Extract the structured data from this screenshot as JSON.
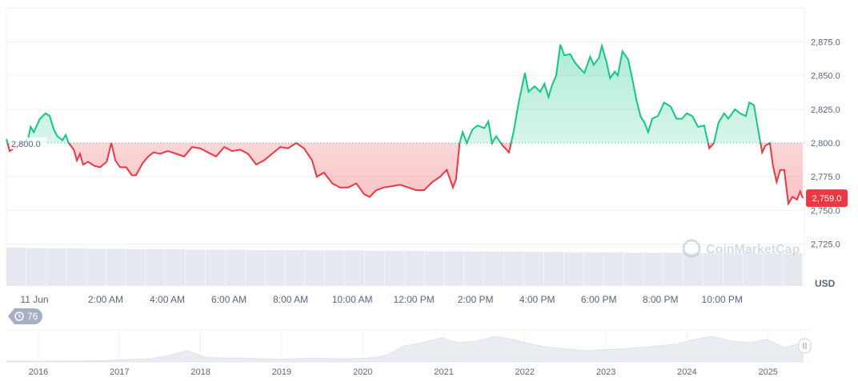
{
  "chart_data": {
    "type": "line",
    "currency_label": "USD",
    "baseline": 2800,
    "baseline_label": "2,800.0",
    "current_price_label": "2,759.0",
    "ylim": [
      2710,
      2900
    ],
    "y_ticks": [
      "2,725.0",
      "2,750.0",
      "2,775.0",
      "2,800.0",
      "2,825.0",
      "2,850.0",
      "2,875.0"
    ],
    "y_tick_values": [
      2725,
      2750,
      2775,
      2800,
      2825,
      2850,
      2875
    ],
    "x_ticks": [
      {
        "label": "11 Jun",
        "t": "2025-06-11T00:00"
      },
      {
        "label": "2:00 AM",
        "t": "2025-06-11T02:00"
      },
      {
        "label": "4:00 AM",
        "t": "2025-06-11T04:00"
      },
      {
        "label": "6:00 AM",
        "t": "2025-06-11T06:00"
      },
      {
        "label": "8:00 AM",
        "t": "2025-06-11T08:00"
      },
      {
        "label": "10:00 AM",
        "t": "2025-06-11T10:00"
      },
      {
        "label": "12:00 PM",
        "t": "2025-06-11T12:00"
      },
      {
        "label": "2:00 PM",
        "t": "2025-06-11T14:00"
      },
      {
        "label": "4:00 PM",
        "t": "2025-06-11T16:00"
      },
      {
        "label": "6:00 PM",
        "t": "2025-06-11T18:00"
      },
      {
        "label": "8:00 PM",
        "t": "2025-06-11T20:00"
      },
      {
        "label": "10:00 PM",
        "t": "2025-06-11T22:00"
      }
    ],
    "colors": {
      "up": "#16c784",
      "down": "#ea3943",
      "grid": "#eff2f5",
      "volume": "#e6eaf0",
      "label": "#58667e"
    },
    "series": [
      [
        "2025-06-10T22:47",
        2803
      ],
      [
        "2025-06-10T22:53",
        2794
      ],
      [
        "2025-06-10T23:29",
        2803
      ],
      [
        "2025-06-10T23:34",
        2812
      ],
      [
        "2025-06-10T23:40",
        2808
      ],
      [
        "2025-06-10T23:52",
        2818
      ],
      [
        "2025-06-11T00:03",
        2822
      ],
      [
        "2025-06-11T00:11",
        2820
      ],
      [
        "2025-06-11T00:19",
        2810
      ],
      [
        "2025-06-11T00:26",
        2805
      ],
      [
        "2025-06-11T00:36",
        2802
      ],
      [
        "2025-06-11T00:42",
        2806
      ],
      [
        "2025-06-11T00:48",
        2800
      ],
      [
        "2025-06-11T00:58",
        2795
      ],
      [
        "2025-06-11T01:04",
        2787
      ],
      [
        "2025-06-11T01:10",
        2792
      ],
      [
        "2025-06-11T01:16",
        2784
      ],
      [
        "2025-06-11T01:26",
        2786
      ],
      [
        "2025-06-11T01:38",
        2783
      ],
      [
        "2025-06-11T01:49",
        2782
      ],
      [
        "2025-06-11T02:02",
        2786
      ],
      [
        "2025-06-11T02:11",
        2800
      ],
      [
        "2025-06-11T02:19",
        2787
      ],
      [
        "2025-06-11T02:28",
        2782
      ],
      [
        "2025-06-11T02:40",
        2782
      ],
      [
        "2025-06-11T02:51",
        2776
      ],
      [
        "2025-06-11T02:59",
        2776
      ],
      [
        "2025-06-11T03:12",
        2785
      ],
      [
        "2025-06-11T03:23",
        2790
      ],
      [
        "2025-06-11T03:33",
        2793
      ],
      [
        "2025-06-11T03:46",
        2792
      ],
      [
        "2025-06-11T04:01",
        2794
      ],
      [
        "2025-06-11T04:17",
        2792
      ],
      [
        "2025-06-11T04:33",
        2790
      ],
      [
        "2025-06-11T04:48",
        2797
      ],
      [
        "2025-06-11T05:04",
        2796
      ],
      [
        "2025-06-11T05:19",
        2793
      ],
      [
        "2025-06-11T05:35",
        2790
      ],
      [
        "2025-06-11T05:51",
        2797
      ],
      [
        "2025-06-11T06:06",
        2794
      ],
      [
        "2025-06-11T06:22",
        2795
      ],
      [
        "2025-06-11T06:37",
        2792
      ],
      [
        "2025-06-11T06:53",
        2784
      ],
      [
        "2025-06-11T07:08",
        2787
      ],
      [
        "2025-06-11T07:24",
        2792
      ],
      [
        "2025-06-11T07:40",
        2797
      ],
      [
        "2025-06-11T07:55",
        2796
      ],
      [
        "2025-06-11T08:11",
        2800
      ],
      [
        "2025-06-11T08:26",
        2796
      ],
      [
        "2025-06-11T08:42",
        2787
      ],
      [
        "2025-06-11T08:51",
        2775
      ],
      [
        "2025-06-11T09:05",
        2778
      ],
      [
        "2025-06-11T09:21",
        2770
      ],
      [
        "2025-06-11T09:36",
        2767
      ],
      [
        "2025-06-11T09:52",
        2767
      ],
      [
        "2025-06-11T10:08",
        2770
      ],
      [
        "2025-06-11T10:23",
        2762
      ],
      [
        "2025-06-11T10:34",
        2760
      ],
      [
        "2025-06-11T10:47",
        2765
      ],
      [
        "2025-06-11T11:02",
        2767
      ],
      [
        "2025-06-11T11:18",
        2768
      ],
      [
        "2025-06-11T11:33",
        2769
      ],
      [
        "2025-06-11T11:49",
        2767
      ],
      [
        "2025-06-11T12:04",
        2765
      ],
      [
        "2025-06-11T12:20",
        2765
      ],
      [
        "2025-06-11T12:36",
        2771
      ],
      [
        "2025-06-11T12:51",
        2775
      ],
      [
        "2025-06-11T13:04",
        2780
      ],
      [
        "2025-06-11T13:16",
        2767
      ],
      [
        "2025-06-11T13:22",
        2773
      ],
      [
        "2025-06-11T13:29",
        2800
      ],
      [
        "2025-06-11T13:35",
        2808
      ],
      [
        "2025-06-11T13:43",
        2800
      ],
      [
        "2025-06-11T13:54",
        2810
      ],
      [
        "2025-06-11T14:04",
        2813
      ],
      [
        "2025-06-11T14:17",
        2811
      ],
      [
        "2025-06-11T14:25",
        2816
      ],
      [
        "2025-06-11T14:32",
        2800
      ],
      [
        "2025-06-11T14:40",
        2805
      ],
      [
        "2025-06-11T14:53",
        2798
      ],
      [
        "2025-06-11T15:05",
        2793
      ],
      [
        "2025-06-11T15:14",
        2808
      ],
      [
        "2025-06-11T15:24",
        2830
      ],
      [
        "2025-06-11T15:36",
        2852
      ],
      [
        "2025-06-11T15:43",
        2838
      ],
      [
        "2025-06-11T15:55",
        2842
      ],
      [
        "2025-06-11T16:06",
        2838
      ],
      [
        "2025-06-11T16:14",
        2844
      ],
      [
        "2025-06-11T16:22",
        2834
      ],
      [
        "2025-06-11T16:29",
        2843
      ],
      [
        "2025-06-11T16:37",
        2850
      ],
      [
        "2025-06-11T16:45",
        2873
      ],
      [
        "2025-06-11T16:53",
        2865
      ],
      [
        "2025-06-11T17:04",
        2866
      ],
      [
        "2025-06-11T17:13",
        2860
      ],
      [
        "2025-06-11T17:24",
        2855
      ],
      [
        "2025-06-11T17:32",
        2852
      ],
      [
        "2025-06-11T17:43",
        2864
      ],
      [
        "2025-06-11T17:50",
        2858
      ],
      [
        "2025-06-11T18:00",
        2863
      ],
      [
        "2025-06-11T18:06",
        2872
      ],
      [
        "2025-06-11T18:15",
        2860
      ],
      [
        "2025-06-11T18:22",
        2848
      ],
      [
        "2025-06-11T18:31",
        2853
      ],
      [
        "2025-06-11T18:37",
        2850
      ],
      [
        "2025-06-11T18:46",
        2868
      ],
      [
        "2025-06-11T18:57",
        2862
      ],
      [
        "2025-06-11T19:05",
        2848
      ],
      [
        "2025-06-11T19:13",
        2832
      ],
      [
        "2025-06-11T19:21",
        2820
      ],
      [
        "2025-06-11T19:29",
        2815
      ],
      [
        "2025-06-11T19:36",
        2808
      ],
      [
        "2025-06-11T19:44",
        2818
      ],
      [
        "2025-06-11T19:55",
        2820
      ],
      [
        "2025-06-11T20:07",
        2830
      ],
      [
        "2025-06-11T20:20",
        2827
      ],
      [
        "2025-06-11T20:31",
        2818
      ],
      [
        "2025-06-11T20:42",
        2818
      ],
      [
        "2025-06-11T20:51",
        2822
      ],
      [
        "2025-06-11T21:02",
        2820
      ],
      [
        "2025-06-11T21:13",
        2812
      ],
      [
        "2025-06-11T21:25",
        2813
      ],
      [
        "2025-06-11T21:35",
        2796
      ],
      [
        "2025-06-11T21:44",
        2800
      ],
      [
        "2025-06-11T21:53",
        2815
      ],
      [
        "2025-06-11T22:04",
        2822
      ],
      [
        "2025-06-11T22:12",
        2818
      ],
      [
        "2025-06-11T22:25",
        2825
      ],
      [
        "2025-06-11T22:35",
        2822
      ],
      [
        "2025-06-11T22:46",
        2820
      ],
      [
        "2025-06-11T22:53",
        2830
      ],
      [
        "2025-06-11T23:02",
        2828
      ],
      [
        "2025-06-11T23:11",
        2808
      ],
      [
        "2025-06-11T23:18",
        2793
      ],
      [
        "2025-06-11T23:24",
        2798
      ],
      [
        "2025-06-11T23:33",
        2800
      ],
      [
        "2025-06-11T23:39",
        2783
      ],
      [
        "2025-06-11T23:46",
        2771
      ],
      [
        "2025-06-11T23:53",
        2780
      ],
      [
        "2025-06-12T00:01",
        2780
      ],
      [
        "2025-06-12T00:09",
        2755
      ],
      [
        "2025-06-12T00:17",
        2760
      ],
      [
        "2025-06-12T00:26",
        2758
      ],
      [
        "2025-06-12T00:32",
        2764
      ],
      [
        "2025-06-12T00:37",
        2759
      ]
    ],
    "volume_relative": [
      1,
      0.99,
      0.98,
      0.98,
      0.97,
      0.97,
      0.96,
      0.96,
      0.96,
      0.95,
      0.95,
      0.95,
      0.94,
      0.94,
      0.94,
      0.93,
      0.93,
      0.93,
      0.92,
      0.92,
      0.92,
      0.91,
      0.91,
      0.9,
      0.9,
      0.9,
      0.89,
      0.89,
      0.88,
      0.88,
      0.88,
      0.87,
      0.87,
      0.87,
      0.86,
      0.86,
      0.86,
      0.86,
      0.85,
      0.85
    ],
    "navigator": {
      "years": [
        "2016",
        "2017",
        "2018",
        "2019",
        "2020",
        "2021",
        "2022",
        "2023",
        "2024",
        "2025"
      ],
      "values": [
        0.02,
        0.02,
        0.02,
        0.02,
        0.03,
        0.03,
        0.05,
        0.08,
        0.1,
        0.2,
        0.35,
        0.15,
        0.12,
        0.12,
        0.1,
        0.08,
        0.1,
        0.12,
        0.1,
        0.1,
        0.12,
        0.2,
        0.5,
        0.6,
        0.75,
        0.6,
        0.65,
        0.8,
        0.7,
        0.55,
        0.45,
        0.4,
        0.35,
        0.38,
        0.4,
        0.45,
        0.5,
        0.55,
        0.7,
        0.8,
        0.65,
        0.6,
        0.7,
        0.45,
        0.6
      ],
      "badge": "76"
    }
  },
  "watermark": "CoinMarketCap"
}
